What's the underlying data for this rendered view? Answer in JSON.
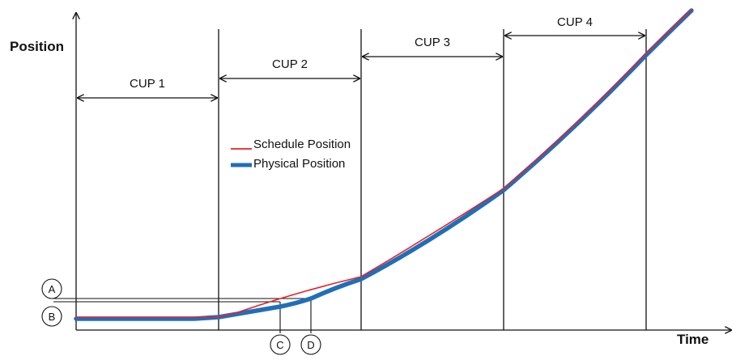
{
  "axes": {
    "y_label": "Position",
    "x_label": "Time"
  },
  "segments": [
    {
      "label": "CUP 1"
    },
    {
      "label": "CUP 2"
    },
    {
      "label": "CUP 3"
    },
    {
      "label": "CUP 4"
    }
  ],
  "legend": {
    "schedule": "Schedule Position",
    "physical": "Physical Position"
  },
  "markers": {
    "a": "A",
    "b": "B",
    "c": "C",
    "d": "D"
  },
  "colors": {
    "schedule": "#e8202a",
    "physical": "#1f6fb8",
    "ink": "#111111"
  }
}
